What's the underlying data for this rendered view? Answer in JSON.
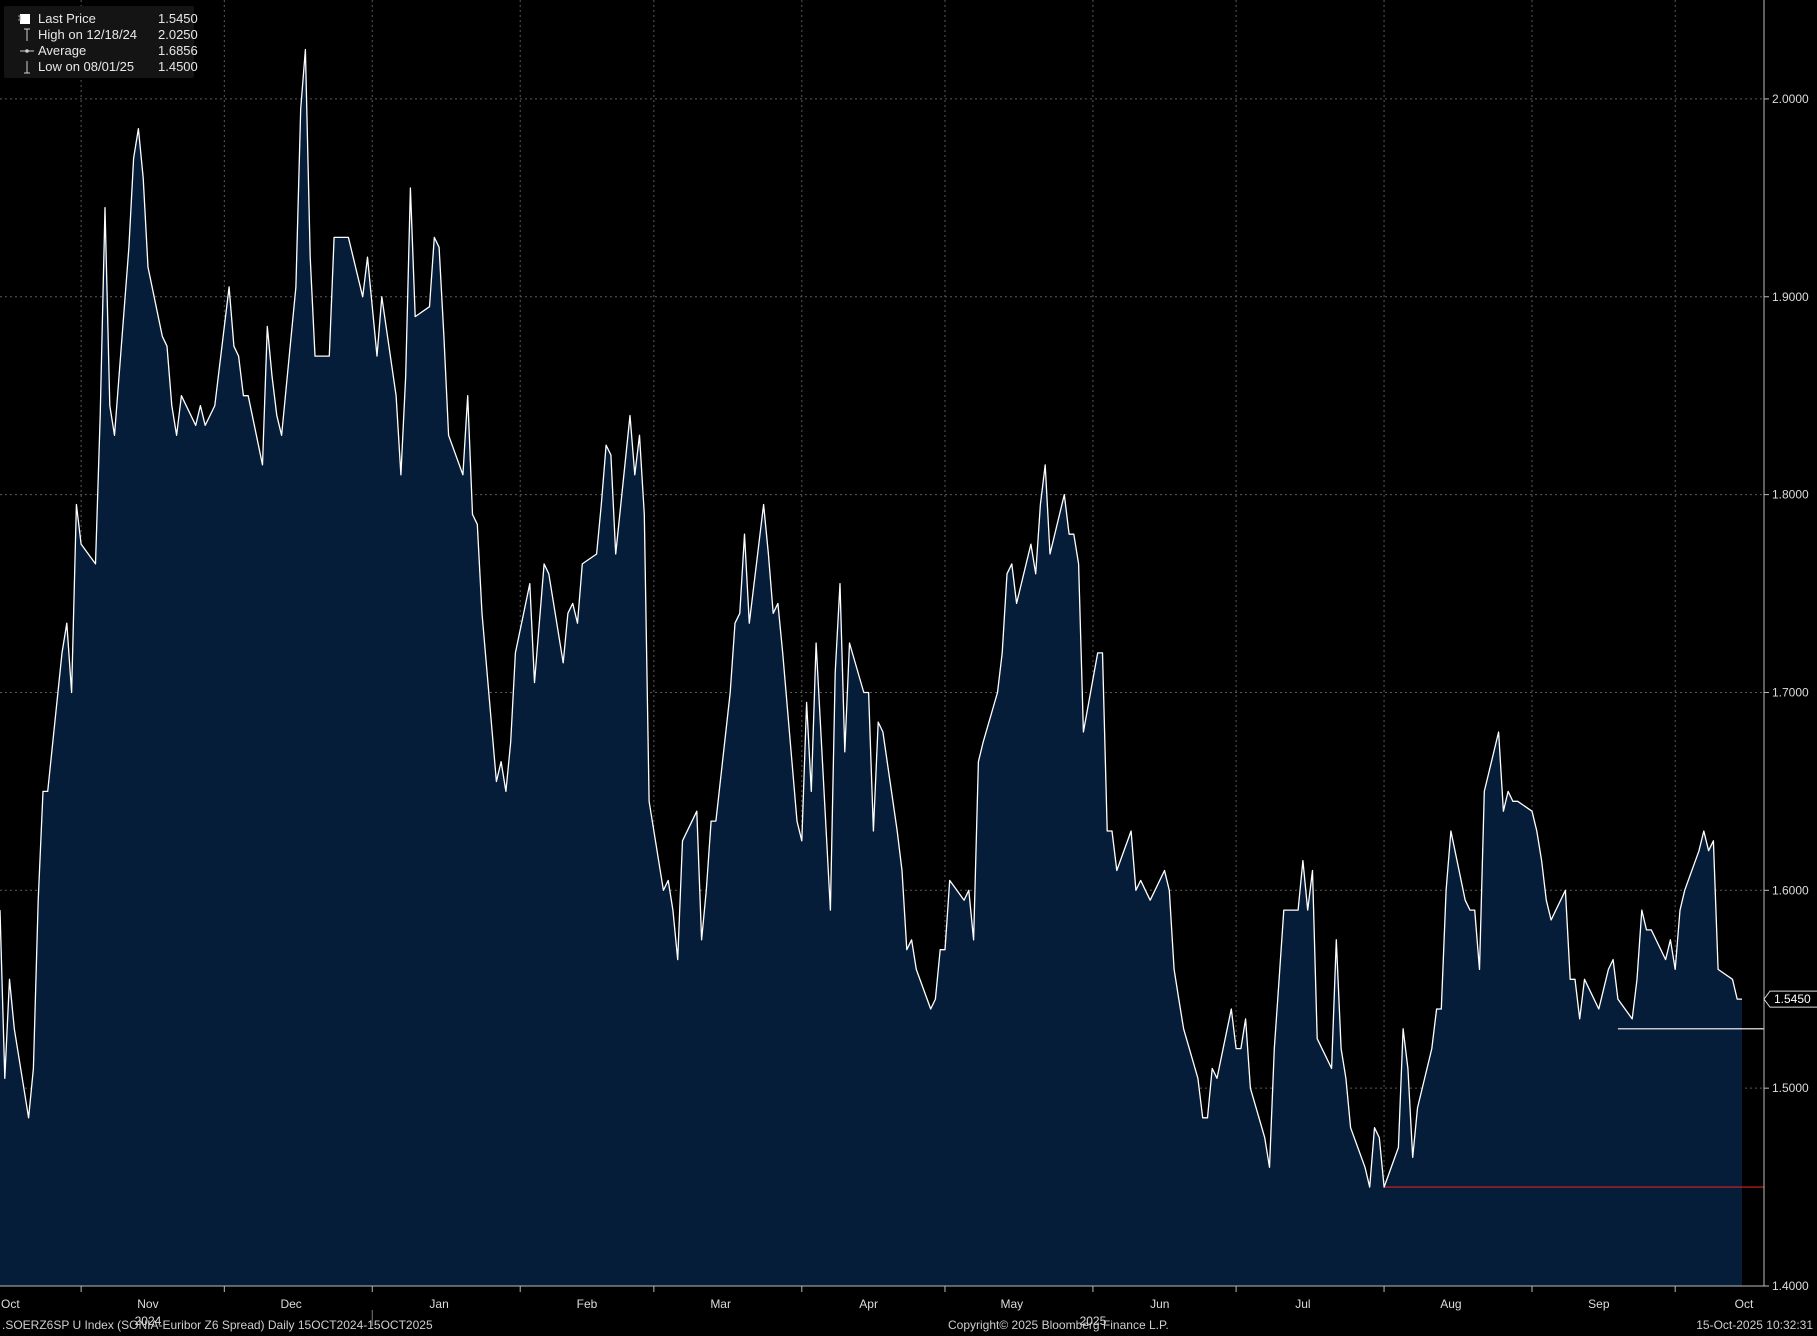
{
  "legend": {
    "items": [
      {
        "marker": "square",
        "label": "Last Price",
        "value": "1.5450"
      },
      {
        "marker": "high-marker",
        "label": "High on 12/18/24",
        "value": "2.0250"
      },
      {
        "marker": "average-marker",
        "label": "Average",
        "value": "1.6856"
      },
      {
        "marker": "low-marker",
        "label": "Low on 08/01/25",
        "value": "1.4500"
      }
    ]
  },
  "footer": {
    "title": ".SOERZ6SP U Index (SONIA-Euribor Z6 Spread) Daily 15OCT2024-15OCT2025",
    "copyright": "Copyright© 2025 Bloomberg Finance L.P.",
    "timestamp": "15-Oct-2025 10:32:31"
  },
  "colors": {
    "background": "#000000",
    "area_fill": "#061d3a",
    "line": "#ffffff",
    "grid": "#5a5a5a",
    "low_line": "#d42222",
    "text": "#dcdcdc"
  },
  "chart_data": {
    "type": "area",
    "title": ".SOERZ6SP U Index (SONIA-Euribor Z6 Spread) Daily 15OCT2024-15OCT2025",
    "xlabel": "",
    "ylabel": "",
    "x_range": [
      "2024-10-15",
      "2025-10-15"
    ],
    "ylim": [
      1.4,
      2.05
    ],
    "y_ticks": [
      "1.4000",
      "1.5000",
      "1.6000",
      "1.7000",
      "1.8000",
      "1.9000",
      "2.0000"
    ],
    "x_month_ticks": [
      "Oct",
      "Nov",
      "Dec",
      "Jan",
      "Feb",
      "Mar",
      "Apr",
      "May",
      "Jun",
      "Jul",
      "Aug",
      "Sep",
      "Oct"
    ],
    "x_year_ticks": [
      "2024",
      "2025"
    ],
    "grid": true,
    "legend_position": "top-left",
    "last_price_label": "1.5450",
    "high": {
      "date": "2024-12-18",
      "value": 2.025
    },
    "low": {
      "date": "2025-08-01",
      "value": 1.45
    },
    "average": 1.6856,
    "series": [
      {
        "name": "Last Price",
        "points": [
          [
            "2024-10-15",
            1.59
          ],
          [
            "2024-10-16",
            1.505
          ],
          [
            "2024-10-17",
            1.555
          ],
          [
            "2024-10-18",
            1.53
          ],
          [
            "2024-10-21",
            1.485
          ],
          [
            "2024-10-22",
            1.51
          ],
          [
            "2024-10-23",
            1.595
          ],
          [
            "2024-10-24",
            1.65
          ],
          [
            "2024-10-25",
            1.65
          ],
          [
            "2024-10-28",
            1.72
          ],
          [
            "2024-10-29",
            1.735
          ],
          [
            "2024-10-30",
            1.7
          ],
          [
            "2024-10-31",
            1.795
          ],
          [
            "2024-11-01",
            1.775
          ],
          [
            "2024-11-04",
            1.765
          ],
          [
            "2024-11-05",
            1.84
          ],
          [
            "2024-11-06",
            1.945
          ],
          [
            "2024-11-07",
            1.845
          ],
          [
            "2024-11-08",
            1.83
          ],
          [
            "2024-11-11",
            1.925
          ],
          [
            "2024-11-12",
            1.97
          ],
          [
            "2024-11-13",
            1.985
          ],
          [
            "2024-11-14",
            1.96
          ],
          [
            "2024-11-15",
            1.915
          ],
          [
            "2024-11-18",
            1.88
          ],
          [
            "2024-11-19",
            1.875
          ],
          [
            "2024-11-20",
            1.845
          ],
          [
            "2024-11-21",
            1.83
          ],
          [
            "2024-11-22",
            1.85
          ],
          [
            "2024-11-25",
            1.835
          ],
          [
            "2024-11-26",
            1.845
          ],
          [
            "2024-11-27",
            1.835
          ],
          [
            "2024-11-28",
            1.84
          ],
          [
            "2024-11-29",
            1.845
          ],
          [
            "2024-12-02",
            1.905
          ],
          [
            "2024-12-03",
            1.875
          ],
          [
            "2024-12-04",
            1.87
          ],
          [
            "2024-12-05",
            1.85
          ],
          [
            "2024-12-06",
            1.85
          ],
          [
            "2024-12-09",
            1.815
          ],
          [
            "2024-12-10",
            1.885
          ],
          [
            "2024-12-11",
            1.86
          ],
          [
            "2024-12-12",
            1.84
          ],
          [
            "2024-12-13",
            1.83
          ],
          [
            "2024-12-16",
            1.905
          ],
          [
            "2024-12-17",
            1.995
          ],
          [
            "2024-12-18",
            2.025
          ],
          [
            "2024-12-19",
            1.92
          ],
          [
            "2024-12-20",
            1.87
          ],
          [
            "2024-12-23",
            1.87
          ],
          [
            "2024-12-24",
            1.93
          ],
          [
            "2024-12-27",
            1.93
          ],
          [
            "2024-12-30",
            1.9
          ],
          [
            "2024-12-31",
            1.92
          ],
          [
            "2025-01-02",
            1.87
          ],
          [
            "2025-01-03",
            1.9
          ],
          [
            "2025-01-06",
            1.85
          ],
          [
            "2025-01-07",
            1.81
          ],
          [
            "2025-01-08",
            1.86
          ],
          [
            "2025-01-09",
            1.955
          ],
          [
            "2025-01-10",
            1.89
          ],
          [
            "2025-01-13",
            1.895
          ],
          [
            "2025-01-14",
            1.93
          ],
          [
            "2025-01-15",
            1.925
          ],
          [
            "2025-01-16",
            1.88
          ],
          [
            "2025-01-17",
            1.83
          ],
          [
            "2025-01-20",
            1.81
          ],
          [
            "2025-01-21",
            1.85
          ],
          [
            "2025-01-22",
            1.79
          ],
          [
            "2025-01-23",
            1.785
          ],
          [
            "2025-01-24",
            1.74
          ],
          [
            "2025-01-27",
            1.655
          ],
          [
            "2025-01-28",
            1.665
          ],
          [
            "2025-01-29",
            1.65
          ],
          [
            "2025-01-30",
            1.675
          ],
          [
            "2025-01-31",
            1.72
          ],
          [
            "2025-02-03",
            1.755
          ],
          [
            "2025-02-04",
            1.705
          ],
          [
            "2025-02-05",
            1.735
          ],
          [
            "2025-02-06",
            1.765
          ],
          [
            "2025-02-07",
            1.76
          ],
          [
            "2025-02-10",
            1.715
          ],
          [
            "2025-02-11",
            1.74
          ],
          [
            "2025-02-12",
            1.745
          ],
          [
            "2025-02-13",
            1.735
          ],
          [
            "2025-02-14",
            1.765
          ],
          [
            "2025-02-17",
            1.77
          ],
          [
            "2025-02-18",
            1.795
          ],
          [
            "2025-02-19",
            1.825
          ],
          [
            "2025-02-20",
            1.82
          ],
          [
            "2025-02-21",
            1.77
          ],
          [
            "2025-02-24",
            1.84
          ],
          [
            "2025-02-25",
            1.81
          ],
          [
            "2025-02-26",
            1.83
          ],
          [
            "2025-02-27",
            1.79
          ],
          [
            "2025-02-28",
            1.645
          ],
          [
            "2025-03-03",
            1.6
          ],
          [
            "2025-03-04",
            1.605
          ],
          [
            "2025-03-05",
            1.59
          ],
          [
            "2025-03-06",
            1.565
          ],
          [
            "2025-03-07",
            1.625
          ],
          [
            "2025-03-10",
            1.64
          ],
          [
            "2025-03-11",
            1.575
          ],
          [
            "2025-03-12",
            1.6
          ],
          [
            "2025-03-13",
            1.635
          ],
          [
            "2025-03-14",
            1.635
          ],
          [
            "2025-03-17",
            1.7
          ],
          [
            "2025-03-18",
            1.735
          ],
          [
            "2025-03-19",
            1.74
          ],
          [
            "2025-03-20",
            1.78
          ],
          [
            "2025-03-21",
            1.735
          ],
          [
            "2025-03-24",
            1.795
          ],
          [
            "2025-03-25",
            1.77
          ],
          [
            "2025-03-26",
            1.74
          ],
          [
            "2025-03-27",
            1.745
          ],
          [
            "2025-03-28",
            1.72
          ],
          [
            "2025-03-31",
            1.635
          ],
          [
            "2025-04-01",
            1.625
          ],
          [
            "2025-04-02",
            1.695
          ],
          [
            "2025-04-03",
            1.65
          ],
          [
            "2025-04-04",
            1.725
          ],
          [
            "2025-04-07",
            1.59
          ],
          [
            "2025-04-08",
            1.71
          ],
          [
            "2025-04-09",
            1.755
          ],
          [
            "2025-04-10",
            1.67
          ],
          [
            "2025-04-11",
            1.725
          ],
          [
            "2025-04-14",
            1.7
          ],
          [
            "2025-04-15",
            1.7
          ],
          [
            "2025-04-16",
            1.63
          ],
          [
            "2025-04-17",
            1.685
          ],
          [
            "2025-04-18",
            1.68
          ],
          [
            "2025-04-21",
            1.63
          ],
          [
            "2025-04-22",
            1.61
          ],
          [
            "2025-04-23",
            1.57
          ],
          [
            "2025-04-24",
            1.575
          ],
          [
            "2025-04-25",
            1.56
          ],
          [
            "2025-04-28",
            1.54
          ],
          [
            "2025-04-29",
            1.545
          ],
          [
            "2025-04-30",
            1.57
          ],
          [
            "2025-05-01",
            1.57
          ],
          [
            "2025-05-02",
            1.605
          ],
          [
            "2025-05-05",
            1.595
          ],
          [
            "2025-05-06",
            1.6
          ],
          [
            "2025-05-07",
            1.575
          ],
          [
            "2025-05-08",
            1.665
          ],
          [
            "2025-05-09",
            1.675
          ],
          [
            "2025-05-12",
            1.7
          ],
          [
            "2025-05-13",
            1.72
          ],
          [
            "2025-05-14",
            1.76
          ],
          [
            "2025-05-15",
            1.765
          ],
          [
            "2025-05-16",
            1.745
          ],
          [
            "2025-05-19",
            1.775
          ],
          [
            "2025-05-20",
            1.76
          ],
          [
            "2025-05-21",
            1.795
          ],
          [
            "2025-05-22",
            1.815
          ],
          [
            "2025-05-23",
            1.77
          ],
          [
            "2025-05-26",
            1.8
          ],
          [
            "2025-05-27",
            1.78
          ],
          [
            "2025-05-28",
            1.78
          ],
          [
            "2025-05-29",
            1.765
          ],
          [
            "2025-05-30",
            1.68
          ],
          [
            "2025-06-02",
            1.72
          ],
          [
            "2025-06-03",
            1.72
          ],
          [
            "2025-06-04",
            1.63
          ],
          [
            "2025-06-05",
            1.63
          ],
          [
            "2025-06-06",
            1.61
          ],
          [
            "2025-06-09",
            1.63
          ],
          [
            "2025-06-10",
            1.6
          ],
          [
            "2025-06-11",
            1.605
          ],
          [
            "2025-06-12",
            1.6
          ],
          [
            "2025-06-13",
            1.595
          ],
          [
            "2025-06-16",
            1.61
          ],
          [
            "2025-06-17",
            1.6
          ],
          [
            "2025-06-18",
            1.56
          ],
          [
            "2025-06-19",
            1.545
          ],
          [
            "2025-06-20",
            1.53
          ],
          [
            "2025-06-23",
            1.505
          ],
          [
            "2025-06-24",
            1.485
          ],
          [
            "2025-06-25",
            1.485
          ],
          [
            "2025-06-26",
            1.51
          ],
          [
            "2025-06-27",
            1.505
          ],
          [
            "2025-06-30",
            1.54
          ],
          [
            "2025-07-01",
            1.52
          ],
          [
            "2025-07-02",
            1.52
          ],
          [
            "2025-07-03",
            1.535
          ],
          [
            "2025-07-04",
            1.5
          ],
          [
            "2025-07-07",
            1.475
          ],
          [
            "2025-07-08",
            1.46
          ],
          [
            "2025-07-09",
            1.52
          ],
          [
            "2025-07-10",
            1.555
          ],
          [
            "2025-07-11",
            1.59
          ],
          [
            "2025-07-14",
            1.59
          ],
          [
            "2025-07-15",
            1.615
          ],
          [
            "2025-07-16",
            1.59
          ],
          [
            "2025-07-17",
            1.61
          ],
          [
            "2025-07-18",
            1.525
          ],
          [
            "2025-07-21",
            1.51
          ],
          [
            "2025-07-22",
            1.575
          ],
          [
            "2025-07-23",
            1.52
          ],
          [
            "2025-07-24",
            1.505
          ],
          [
            "2025-07-25",
            1.48
          ],
          [
            "2025-07-28",
            1.46
          ],
          [
            "2025-07-29",
            1.45
          ],
          [
            "2025-07-30",
            1.48
          ],
          [
            "2025-07-31",
            1.475
          ],
          [
            "2025-08-01",
            1.45
          ],
          [
            "2025-08-04",
            1.47
          ],
          [
            "2025-08-05",
            1.53
          ],
          [
            "2025-08-06",
            1.51
          ],
          [
            "2025-08-07",
            1.465
          ],
          [
            "2025-08-08",
            1.49
          ],
          [
            "2025-08-11",
            1.52
          ],
          [
            "2025-08-12",
            1.54
          ],
          [
            "2025-08-13",
            1.54
          ],
          [
            "2025-08-14",
            1.6
          ],
          [
            "2025-08-15",
            1.63
          ],
          [
            "2025-08-18",
            1.595
          ],
          [
            "2025-08-19",
            1.59
          ],
          [
            "2025-08-20",
            1.59
          ],
          [
            "2025-08-21",
            1.56
          ],
          [
            "2025-08-22",
            1.65
          ],
          [
            "2025-08-25",
            1.68
          ],
          [
            "2025-08-26",
            1.64
          ],
          [
            "2025-08-27",
            1.65
          ],
          [
            "2025-08-28",
            1.645
          ],
          [
            "2025-08-29",
            1.645
          ],
          [
            "2025-09-01",
            1.64
          ],
          [
            "2025-09-02",
            1.63
          ],
          [
            "2025-09-03",
            1.615
          ],
          [
            "2025-09-04",
            1.595
          ],
          [
            "2025-09-05",
            1.585
          ],
          [
            "2025-09-08",
            1.6
          ],
          [
            "2025-09-09",
            1.555
          ],
          [
            "2025-09-10",
            1.555
          ],
          [
            "2025-09-11",
            1.535
          ],
          [
            "2025-09-12",
            1.555
          ],
          [
            "2025-09-15",
            1.54
          ],
          [
            "2025-09-16",
            1.55
          ],
          [
            "2025-09-17",
            1.56
          ],
          [
            "2025-09-18",
            1.565
          ],
          [
            "2025-09-19",
            1.545
          ],
          [
            "2025-09-22",
            1.535
          ],
          [
            "2025-09-23",
            1.555
          ],
          [
            "2025-09-24",
            1.59
          ],
          [
            "2025-09-25",
            1.58
          ],
          [
            "2025-09-26",
            1.58
          ],
          [
            "2025-09-29",
            1.565
          ],
          [
            "2025-09-30",
            1.575
          ],
          [
            "2025-10-01",
            1.56
          ],
          [
            "2025-10-02",
            1.59
          ],
          [
            "2025-10-03",
            1.6
          ],
          [
            "2025-10-06",
            1.62
          ],
          [
            "2025-10-07",
            1.63
          ],
          [
            "2025-10-08",
            1.62
          ],
          [
            "2025-10-09",
            1.625
          ],
          [
            "2025-10-10",
            1.56
          ],
          [
            "2025-10-13",
            1.555
          ],
          [
            "2025-10-14",
            1.545
          ],
          [
            "2025-10-15",
            1.545
          ]
        ]
      }
    ]
  }
}
